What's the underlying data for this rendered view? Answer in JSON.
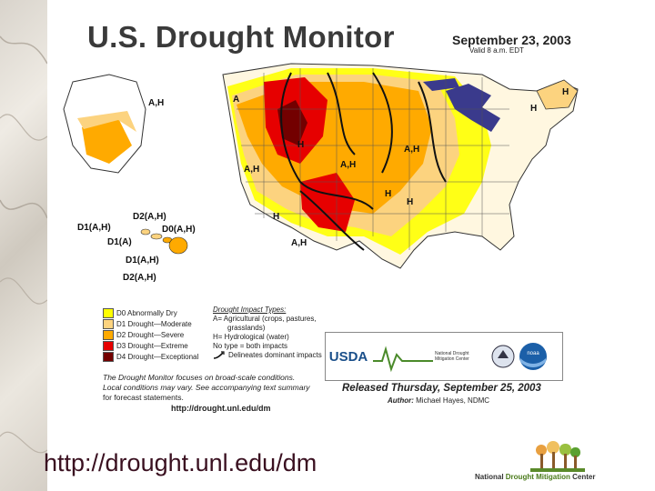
{
  "title": "U.S. Drought Monitor",
  "date": "September 23, 2003",
  "valid": "Valid 8 a.m. EDT",
  "map_labels": {
    "ah_nw": "A,H",
    "a_nw": "A",
    "h_ne": "H",
    "h_ne2": "H",
    "h_mt": "H",
    "ah_mw": "A,H",
    "ah_west": "A,H",
    "ah_plains": "A,H",
    "h_central": "H",
    "h_central2": "H",
    "h_sw": "H",
    "ah_sw": "A,H",
    "ak_d2": "D2(A,H)",
    "ak_d1": "D1(A,H)",
    "ak_d0": "D0(A,H)",
    "hi_d1a": "D1(A)",
    "hi_d1ah": "D1(A,H)",
    "hi_d2ah": "D2(A,H)"
  },
  "legend": {
    "items": [
      {
        "label": "D0 Abnormally Dry",
        "color": "#ffff00"
      },
      {
        "label": "D1 Drought—Moderate",
        "color": "#fcd37f"
      },
      {
        "label": "D2 Drought—Severe",
        "color": "#ffaa00"
      },
      {
        "label": "D3 Drought—Extreme",
        "color": "#e60000"
      },
      {
        "label": "D4 Drought—Exceptional",
        "color": "#730000"
      }
    ]
  },
  "impact": {
    "heading": "Drought Impact Types:",
    "a_line": "A= Agricultural (crops, pastures,",
    "a_line2": "grasslands)",
    "h_line": "H= Hydrological (water)",
    "none_line": "No type = both impacts",
    "arrow_line": "Delineates dominant impacts"
  },
  "note": {
    "line1": "The Drought Monitor focuses on broad-scale conditions.",
    "line2": "Local conditions may vary. See accompanying text summary",
    "line3": "for forecast statements."
  },
  "map_url": "http://drought.unl.edu/dm",
  "logos": {
    "usda": "USDA",
    "ndmc_small": "National Drought Mitigation Center",
    "noaa": "noaa"
  },
  "released": "Released Thursday, September 25, 2003",
  "author_label": "Author:",
  "author_name": "Michael Hayes, NDMC",
  "footer_url": "http://drought.unl.edu/dm",
  "ndmc": {
    "part1": "National ",
    "part2": "Drought Mitigation",
    "part3": " Center"
  }
}
